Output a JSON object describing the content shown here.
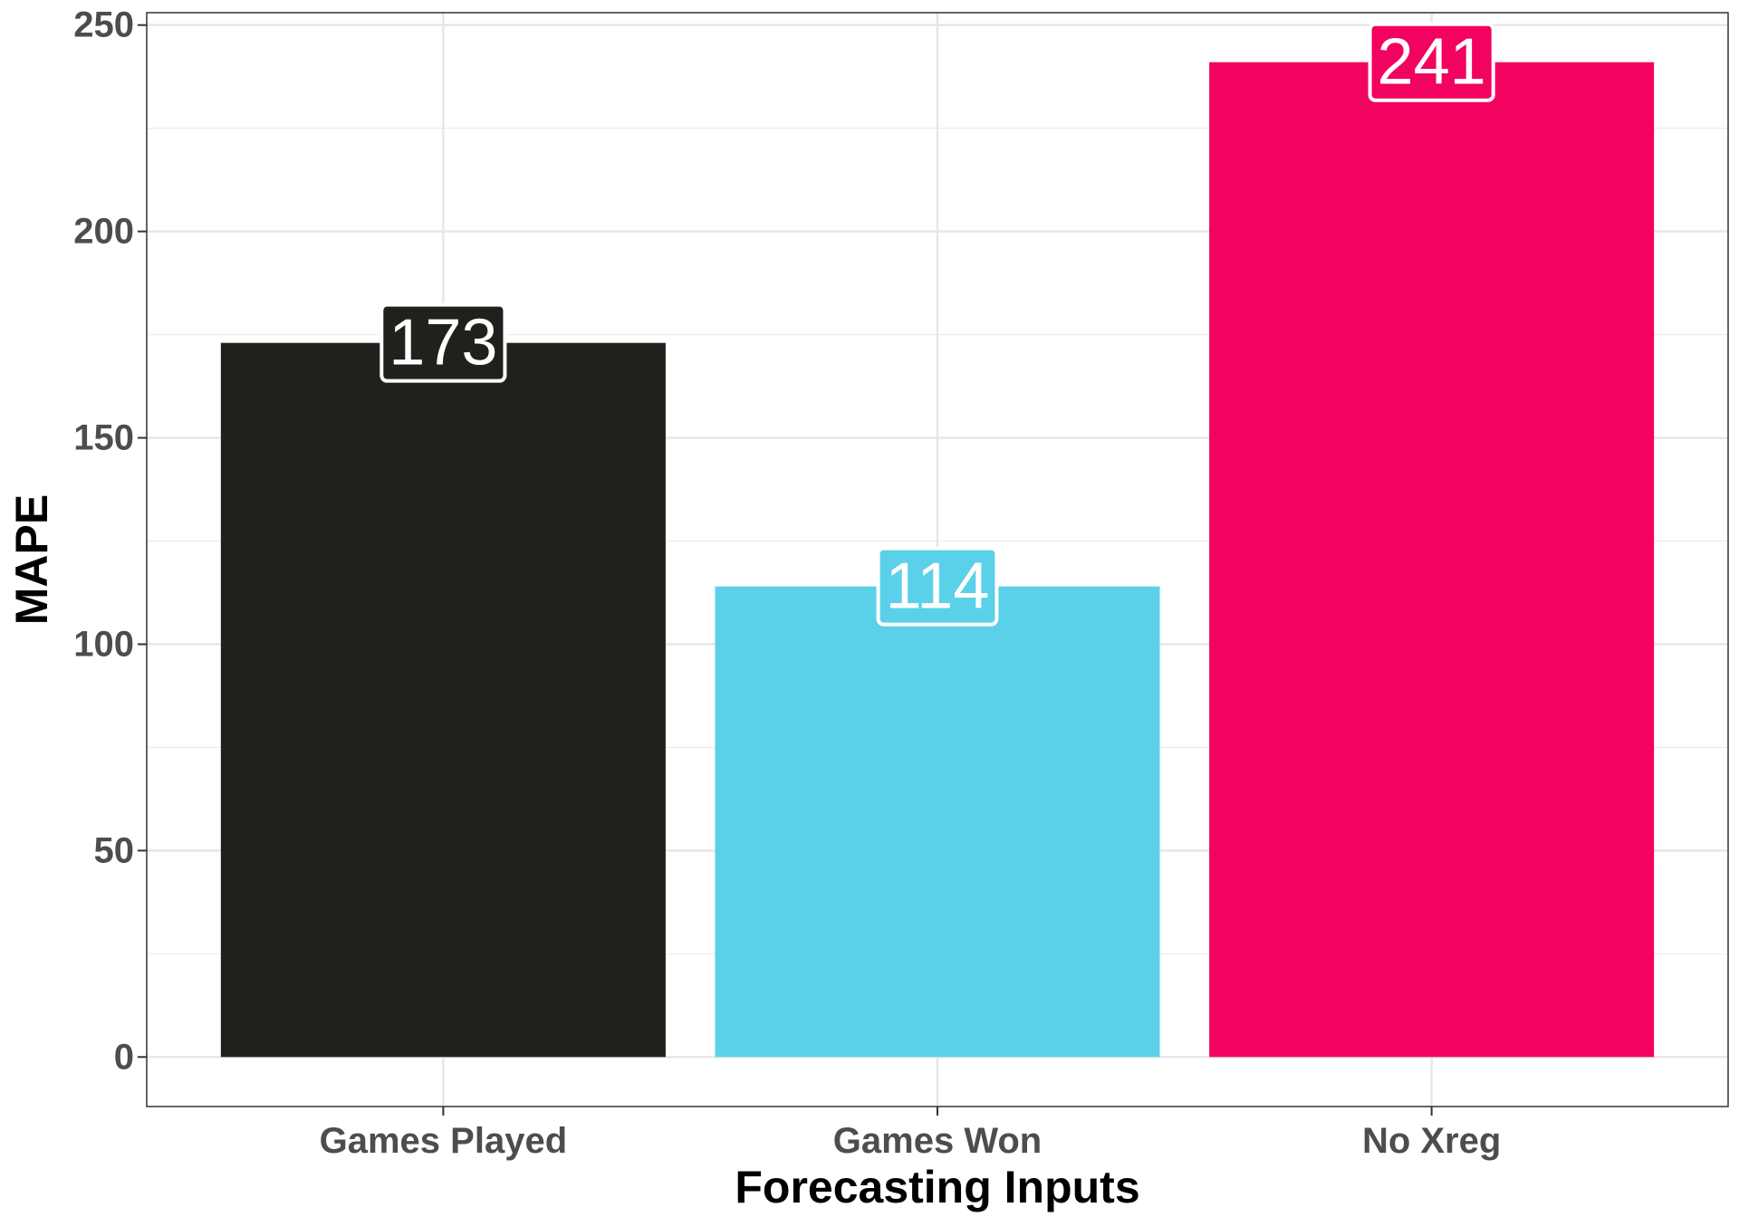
{
  "chart_data": {
    "type": "bar",
    "title": "",
    "xlabel": "Forecasting Inputs",
    "ylabel": "MAPE",
    "categories": [
      "Games Played",
      "Games Won",
      "No Xreg"
    ],
    "values": [
      173,
      114,
      241
    ],
    "value_labels": [
      "173",
      "114",
      "241"
    ],
    "colors": [
      "#20201c",
      "#5bd1e9",
      "#f2035f"
    ],
    "ylim": [
      -12,
      253
    ],
    "yticks": [
      0,
      50,
      100,
      150,
      200,
      250
    ],
    "ytick_labels": [
      "0",
      "50",
      "100",
      "150",
      "200",
      "250"
    ],
    "grid": true,
    "legend": "none"
  }
}
